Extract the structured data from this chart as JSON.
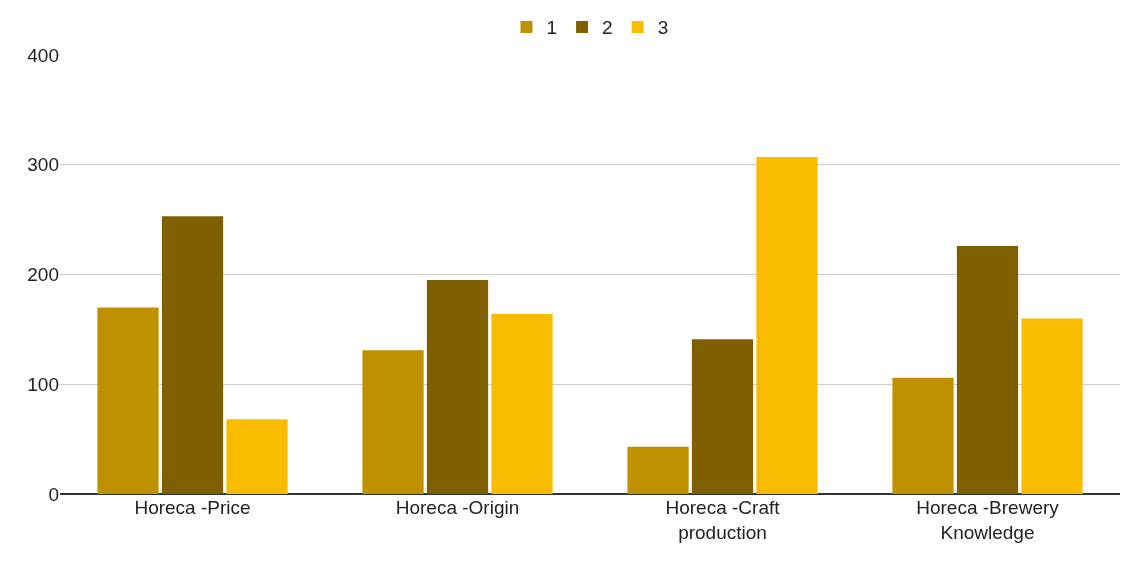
{
  "chart_data": {
    "type": "bar",
    "categories": [
      "Horeca -Price",
      "Horeca -Origin",
      "Horeca -Craft production",
      "Horeca -Brewery Knowledge"
    ],
    "series": [
      {
        "name": "1",
        "color": "#bf9000",
        "values": [
          170,
          131,
          43,
          106
        ]
      },
      {
        "name": "2",
        "color": "#7f6000",
        "values": [
          253,
          195,
          141,
          226
        ]
      },
      {
        "name": "3",
        "color": "#f9bc00",
        "values": [
          68,
          164,
          307,
          160
        ]
      }
    ],
    "ylim": [
      0,
      400
    ],
    "yticks": [
      0,
      100,
      200,
      300,
      400
    ],
    "grid": "y",
    "legend": "top"
  }
}
